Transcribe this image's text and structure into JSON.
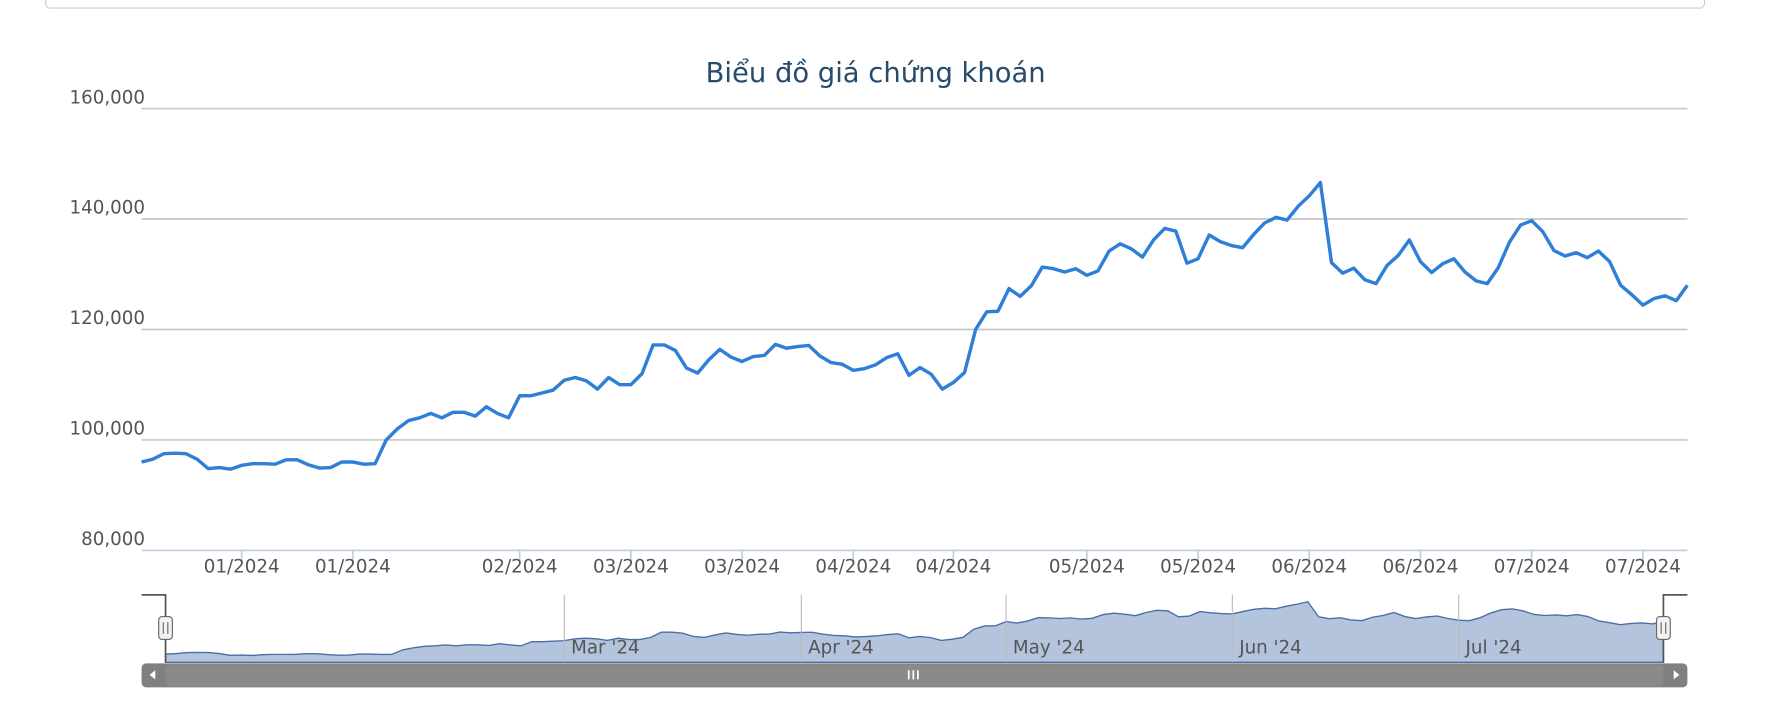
{
  "chart_data": {
    "type": "line",
    "title": "Biểu đồ giá chứng khoán",
    "categories": [
      null,
      null,
      null,
      null,
      null,
      null,
      null,
      null,
      null,
      "01/2024",
      null,
      null,
      null,
      null,
      null,
      null,
      null,
      null,
      null,
      "01/2024",
      null,
      null,
      null,
      null,
      null,
      null,
      null,
      null,
      null,
      null,
      null,
      null,
      null,
      null,
      "02/2024",
      null,
      null,
      null,
      null,
      null,
      null,
      null,
      null,
      null,
      "03/2024",
      null,
      null,
      null,
      null,
      null,
      null,
      null,
      null,
      null,
      "03/2024",
      null,
      null,
      null,
      null,
      null,
      null,
      null,
      null,
      null,
      "04/2024",
      null,
      null,
      null,
      null,
      null,
      null,
      null,
      null,
      "04/2024",
      null,
      null,
      null,
      null,
      null,
      null,
      null,
      null,
      null,
      null,
      null,
      "05/2024",
      null,
      null,
      null,
      null,
      null,
      null,
      null,
      null,
      null,
      "05/2024",
      null,
      null,
      null,
      null,
      null,
      null,
      null,
      null,
      null,
      "06/2024",
      null,
      null,
      null,
      null,
      null,
      null,
      null,
      null,
      null,
      "06/2024",
      null,
      null,
      null,
      null,
      null,
      null,
      null,
      null,
      null,
      "07/2024",
      null,
      null,
      null,
      null,
      null,
      null,
      null,
      null,
      null,
      "07/2024",
      null,
      null,
      null,
      null
    ],
    "series": [
      {
        "color": "#2f7ed8",
        "values": [
          96000,
          96500,
          97500,
          97600,
          97500,
          96500,
          94800,
          95000,
          94700,
          95400,
          95700,
          95700,
          95600,
          96400,
          96400,
          95500,
          94900,
          95000,
          96000,
          96000,
          95600,
          95700,
          100000,
          102000,
          103500,
          104000,
          104800,
          104000,
          105000,
          105000,
          104300,
          106000,
          104800,
          104000,
          108000,
          108000,
          108500,
          109000,
          110800,
          111300,
          110700,
          109200,
          111300,
          110000,
          110000,
          112000,
          117200,
          117200,
          116200,
          113000,
          112100,
          114500,
          116400,
          115000,
          114200,
          115100,
          115300,
          117300,
          116600,
          116900,
          117100,
          115200,
          114000,
          113700,
          112600,
          112900,
          113600,
          114900,
          115600,
          111700,
          113100,
          111900,
          109200,
          110400,
          112200,
          120000,
          123200,
          123300,
          127400,
          126000,
          127900,
          131300,
          131000,
          130400,
          131000,
          129800,
          130600,
          134200,
          135500,
          134600,
          133100,
          136200,
          138300,
          137800,
          132000,
          132800,
          137100,
          135900,
          135200,
          134800,
          137200,
          139300,
          140300,
          139800,
          142300,
          144200,
          146600,
          132100,
          130200,
          131100,
          129000,
          128300,
          131600,
          133400,
          136200,
          132300,
          130300,
          131900,
          132800,
          130400,
          128800,
          128300,
          131200,
          135800,
          138900,
          139700,
          137700,
          134300,
          133300,
          133900,
          133000,
          134200,
          132300,
          128000,
          126300,
          124400,
          125600,
          126100,
          125200,
          128000
        ]
      }
    ],
    "ylim": [
      80000,
      160000
    ],
    "yticks": [
      {
        "value": 80000,
        "label": "80,000"
      },
      {
        "value": 100000,
        "label": "100,000"
      },
      {
        "value": 120000,
        "label": "120,000"
      },
      {
        "value": 140000,
        "label": "140,000"
      },
      {
        "value": 160000,
        "label": "160,000"
      }
    ],
    "grid": true,
    "navigator": {
      "color": "#b3c4dc",
      "xticks": [
        {
          "value": 37,
          "label": "Mar '24"
        },
        {
          "value": 59,
          "label": "Apr '24"
        },
        {
          "value": 78,
          "label": "May '24"
        },
        {
          "value": 99,
          "label": "Jun '24"
        },
        {
          "value": 120,
          "label": "Jul '24"
        }
      ]
    }
  }
}
